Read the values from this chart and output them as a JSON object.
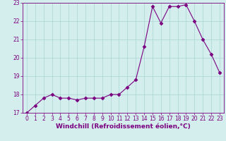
{
  "x": [
    0,
    1,
    2,
    3,
    4,
    5,
    6,
    7,
    8,
    9,
    10,
    11,
    12,
    13,
    14,
    15,
    16,
    17,
    18,
    19,
    20,
    21,
    22,
    23
  ],
  "y": [
    17.0,
    17.4,
    17.8,
    18.0,
    17.8,
    17.8,
    17.7,
    17.8,
    17.8,
    17.8,
    18.0,
    18.0,
    18.4,
    18.8,
    20.6,
    22.8,
    21.9,
    22.8,
    22.8,
    22.9,
    22.0,
    21.0,
    20.2,
    19.2
  ],
  "line_color": "#7b0080",
  "marker": "D",
  "marker_size": 2.5,
  "bg_color": "#d4eeee",
  "grid_color": "#aad4d4",
  "xlabel": "Windchill (Refroidissement éolien,°C)",
  "ylim": [
    17,
    23
  ],
  "xlim": [
    -0.5,
    23.5
  ],
  "yticks": [
    17,
    18,
    19,
    20,
    21,
    22,
    23
  ],
  "xticks": [
    0,
    1,
    2,
    3,
    4,
    5,
    6,
    7,
    8,
    9,
    10,
    11,
    12,
    13,
    14,
    15,
    16,
    17,
    18,
    19,
    20,
    21,
    22,
    23
  ],
  "tick_fontsize": 5.5,
  "xlabel_fontsize": 6.5
}
